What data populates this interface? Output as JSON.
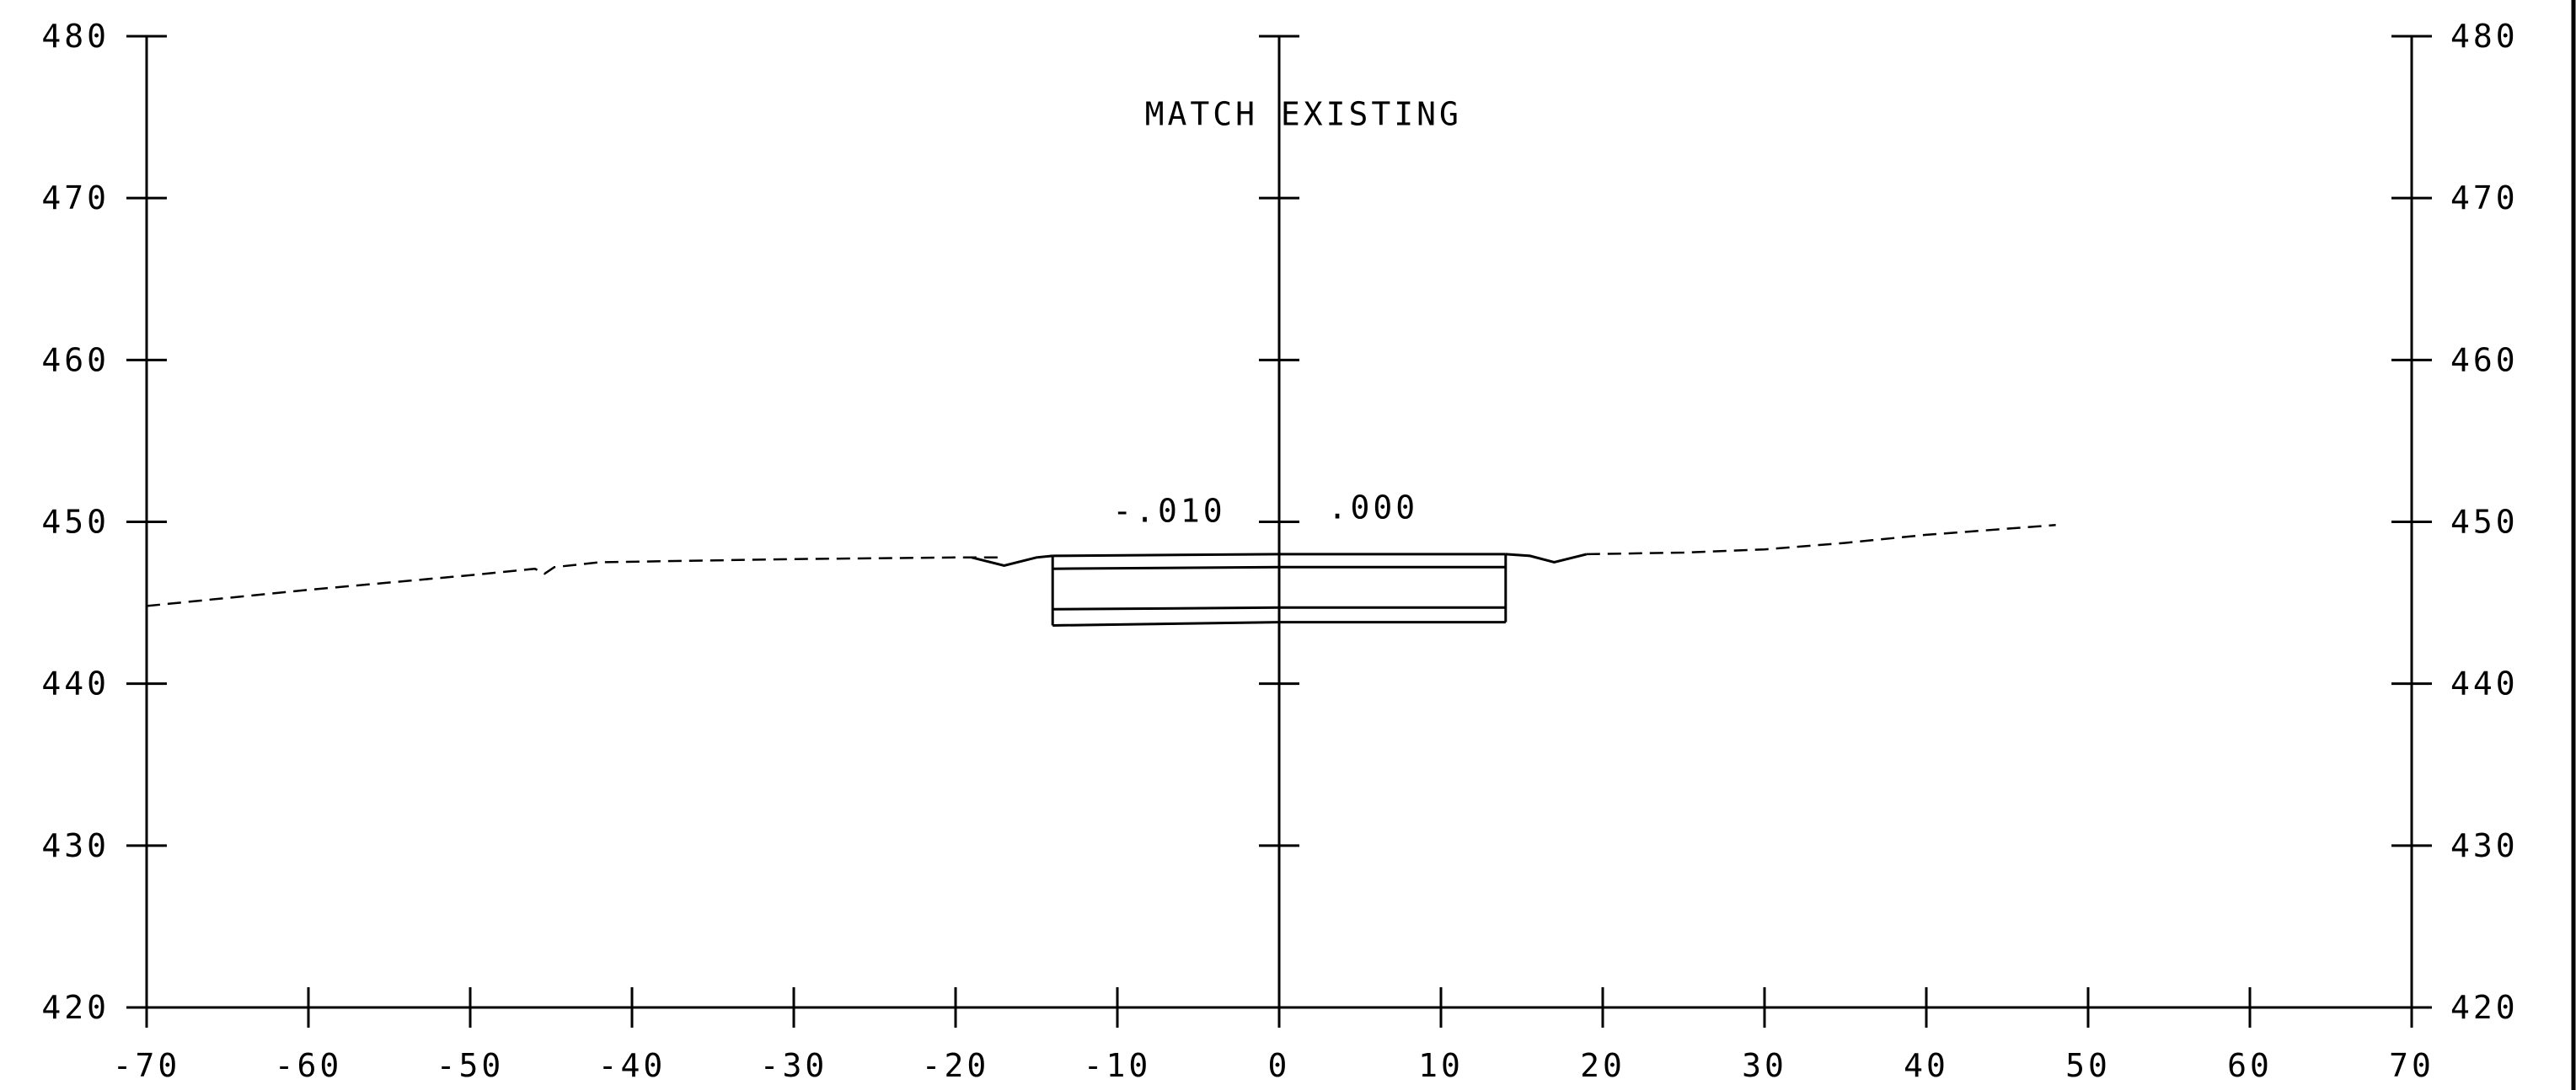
{
  "colors": {
    "background": "#ffffff",
    "line": "#000000"
  },
  "chart_data": {
    "type": "line",
    "title": "",
    "xlabel": "",
    "ylabel": "",
    "xlim": [
      -70,
      70
    ],
    "ylim": [
      420,
      480
    ],
    "x_ticks": [
      -70,
      -60,
      -50,
      -40,
      -30,
      -20,
      -10,
      0,
      10,
      20,
      30,
      40,
      50,
      60,
      70
    ],
    "x_tick_labels": [
      "-70",
      "-60",
      "-50",
      "-40",
      "-30",
      "-20",
      "-10",
      "0",
      "10",
      "20",
      "30",
      "40",
      "50",
      "60",
      "70"
    ],
    "y_ticks": [
      420,
      430,
      440,
      450,
      460,
      470,
      480
    ],
    "y_tick_labels": [
      "420",
      "430",
      "440",
      "450",
      "460",
      "470",
      "480"
    ],
    "grid": false,
    "series": [
      {
        "style": "dashed",
        "x": [
          -70,
          -60,
          -50,
          -46,
          -45.4,
          -44.8,
          -42,
          -30,
          -20,
          -17
        ],
        "y": [
          444.8,
          445.8,
          446.7,
          447.1,
          446.8,
          447.2,
          447.5,
          447.7,
          447.8,
          447.8
        ]
      },
      {
        "style": "dashed",
        "x": [
          19,
          25,
          30,
          35,
          40,
          48
        ],
        "y": [
          448.0,
          448.1,
          448.3,
          448.7,
          449.2,
          449.8
        ]
      }
    ],
    "pavement_layers": [
      {
        "x": [
          -14,
          0,
          14
        ],
        "y": [
          447.9,
          448.0,
          448.0
        ]
      },
      {
        "x": [
          -14,
          0,
          14
        ],
        "y": [
          447.1,
          447.2,
          447.2
        ]
      },
      {
        "x": [
          -14,
          0,
          14
        ],
        "y": [
          444.6,
          444.7,
          444.7
        ]
      },
      {
        "x": [
          -14,
          0,
          14
        ],
        "y": [
          443.6,
          443.8,
          443.8
        ]
      }
    ],
    "pavement_edges": [
      -14,
      14
    ],
    "ditches": [
      {
        "x": [
          -19,
          -17,
          -15,
          -14
        ],
        "y": [
          447.8,
          447.3,
          447.8,
          447.9
        ]
      },
      {
        "x": [
          14,
          15.5,
          17,
          19
        ],
        "y": [
          448.0,
          447.9,
          447.5,
          448.0
        ]
      }
    ],
    "annotations": [
      {
        "text": "MATCH EXISTING",
        "x": -8.3,
        "y": 474.5,
        "anchor": "start"
      },
      {
        "text": "-.010",
        "x": -10.3,
        "y": 450.0,
        "anchor": "start"
      },
      {
        "text": ".000",
        "x": 3.0,
        "y": 450.2,
        "anchor": "start"
      }
    ]
  }
}
